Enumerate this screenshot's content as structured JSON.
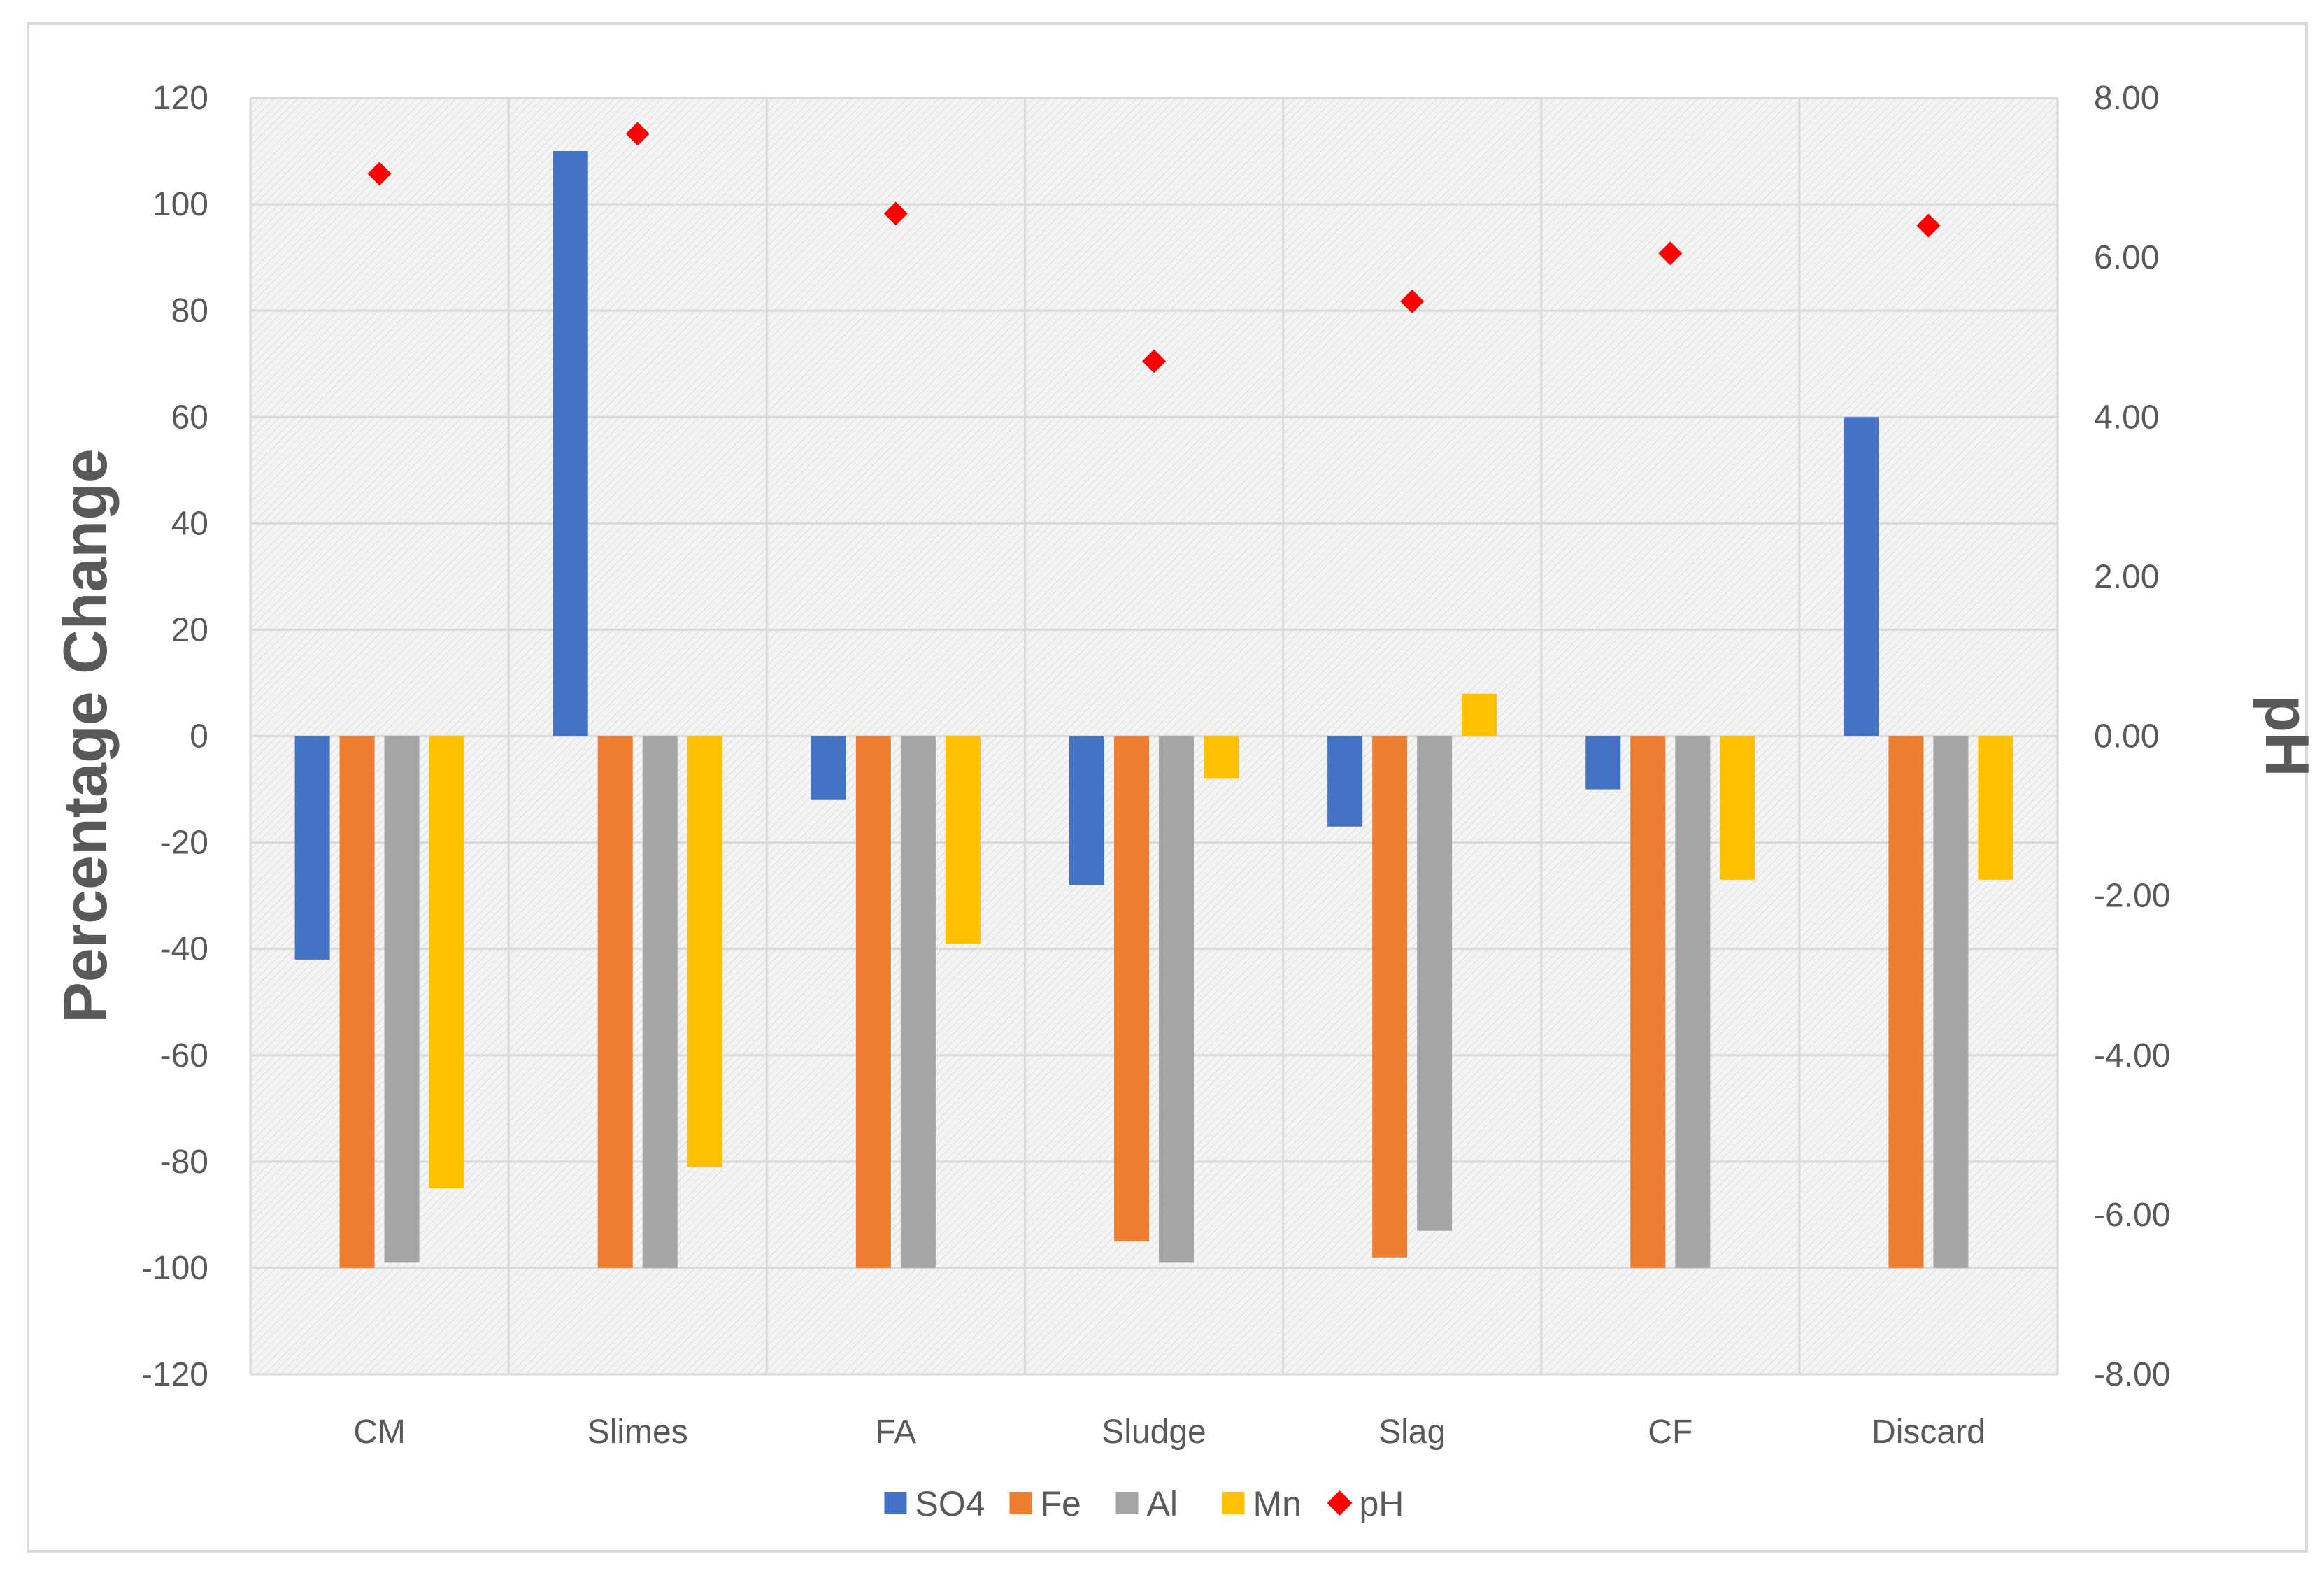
{
  "chart_data": {
    "type": "bar",
    "title": "",
    "categories": [
      "CM",
      "Slimes",
      "FA",
      "Sludge",
      "Slag",
      "CF",
      "Discard"
    ],
    "series": [
      {
        "name": "SO4",
        "kind": "bar",
        "axis": "left",
        "color": "#4472C4",
        "values": [
          -42,
          110,
          -12,
          -28,
          -17,
          -10,
          60
        ]
      },
      {
        "name": "Fe",
        "kind": "bar",
        "axis": "left",
        "color": "#ED7D31",
        "values": [
          -100,
          -100,
          -100,
          -95,
          -98,
          -100,
          -100
        ]
      },
      {
        "name": "Al",
        "kind": "bar",
        "axis": "left",
        "color": "#A5A5A5",
        "values": [
          -99,
          -100,
          -100,
          -99,
          -93,
          -100,
          -100
        ]
      },
      {
        "name": "Mn",
        "kind": "bar",
        "axis": "left",
        "color": "#FFC000",
        "values": [
          -85,
          -81,
          -39,
          -8,
          8,
          -27,
          -27
        ]
      },
      {
        "name": "pH",
        "kind": "scatter",
        "marker": "diamond",
        "axis": "right",
        "color": "#FF0000",
        "values": [
          7.05,
          7.55,
          6.55,
          4.7,
          5.45,
          6.05,
          6.4
        ]
      }
    ],
    "ylabel": "Percentage Change",
    "ylim": [
      -120,
      120
    ],
    "yticks": [
      "120",
      "100",
      "80",
      "60",
      "40",
      "20",
      "0",
      "-20",
      "-40",
      "-60",
      "-80",
      "-100",
      "-120"
    ],
    "y2label": "pH",
    "y2lim": [
      -8,
      8
    ],
    "y2ticks": [
      "8.00",
      "6.00",
      "4.00",
      "2.00",
      "0.00",
      "-2.00",
      "-4.00",
      "-6.00",
      "-8.00"
    ],
    "legend": [
      "SO4",
      "Fe",
      "Al",
      "Mn",
      "pH"
    ],
    "legend_position": "bottom",
    "grid": true
  }
}
